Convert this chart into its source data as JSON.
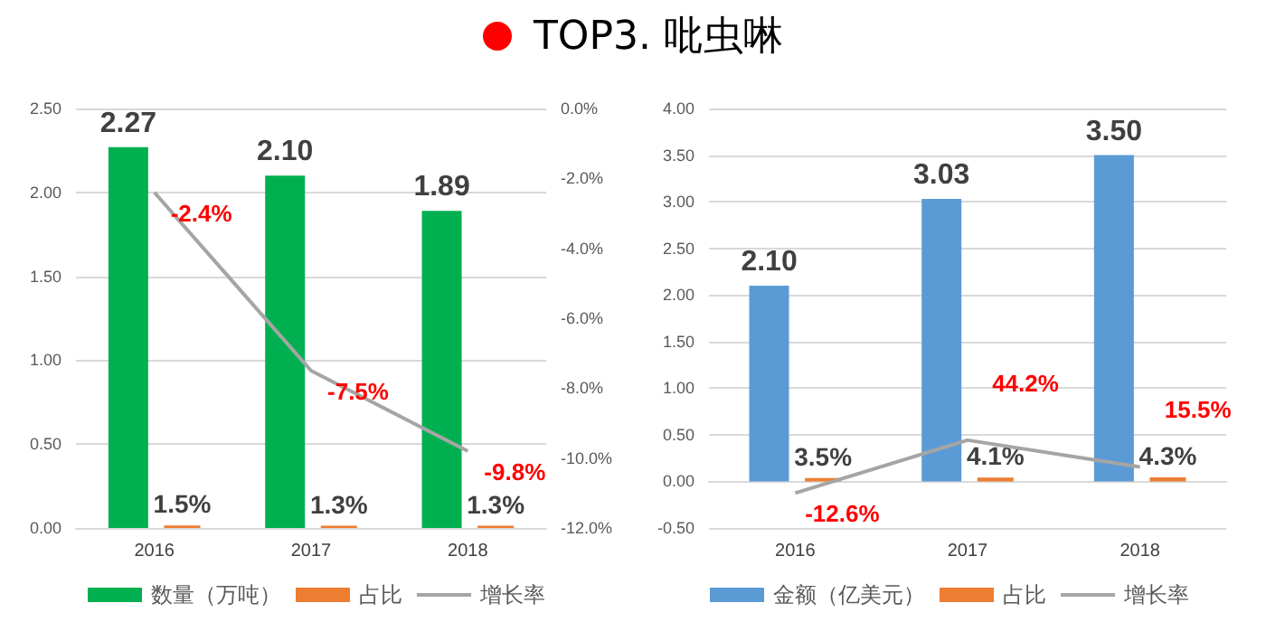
{
  "chart_data": [
    {
      "type": "bar",
      "title": "TOP3. 吡虫啉",
      "categories": [
        "2016",
        "2017",
        "2018"
      ],
      "legend": "bottom",
      "grid": "y",
      "marker": "none",
      "ylim": [
        0,
        2.5
      ],
      "yticks": [
        {
          "value": 0,
          "label": "0.00"
        },
        {
          "value": 0.5,
          "label": "0.50"
        },
        {
          "value": 1,
          "label": "1.00"
        },
        {
          "value": 1.5,
          "label": "1.50"
        },
        {
          "value": 2,
          "label": "2.00"
        },
        {
          "value": 2.5,
          "label": "2.50"
        }
      ],
      "y2lim": [
        -12,
        0
      ],
      "y2ticks": [
        {
          "value": -12,
          "label": "-12.0%"
        },
        {
          "value": -10,
          "label": "-10.0%"
        },
        {
          "value": -8,
          "label": "-8.0%"
        },
        {
          "value": -6,
          "label": "-6.0%"
        },
        {
          "value": -4,
          "label": "-4.0%"
        },
        {
          "value": -2,
          "label": "-2.0%"
        },
        {
          "value": 0,
          "label": "0.0%"
        }
      ],
      "series": [
        {
          "name": "数量（万吨）",
          "color": "#00b050",
          "values": [
            2.27,
            2.1,
            1.89
          ],
          "value_labels": [
            "2.27",
            "2.10",
            "1.89"
          ]
        },
        {
          "name": "占比",
          "color": "#ed7d31",
          "values": [
            0.015,
            0.013,
            0.013
          ],
          "value_labels": [
            "1.5%",
            "1.3%",
            "1.3%"
          ]
        },
        {
          "name": "增长率",
          "type": "line",
          "axis": "y2",
          "color": "#a5a5a5",
          "values": [
            -2.4,
            -7.5,
            -9.8
          ],
          "value_labels": [
            "-2.4%",
            "-7.5%",
            "-9.8%"
          ]
        }
      ]
    },
    {
      "type": "bar",
      "categories": [
        "2016",
        "2017",
        "2018"
      ],
      "legend": "bottom",
      "grid": "y",
      "marker": "none",
      "ylim": [
        -0.5,
        4
      ],
      "yticks": [
        {
          "value": -0.5,
          "label": "-0.50"
        },
        {
          "value": 0,
          "label": "0.00"
        },
        {
          "value": 0.5,
          "label": "0.50"
        },
        {
          "value": 1,
          "label": "1.00"
        },
        {
          "value": 1.5,
          "label": "1.50"
        },
        {
          "value": 2,
          "label": "2.00"
        },
        {
          "value": 2.5,
          "label": "2.50"
        },
        {
          "value": 3,
          "label": "3.00"
        },
        {
          "value": 3.5,
          "label": "3.50"
        },
        {
          "value": 4,
          "label": "4.00"
        }
      ],
      "series": [
        {
          "name": "金额（亿美元）",
          "color": "#5b9bd5",
          "values": [
            2.1,
            3.03,
            3.5
          ],
          "value_labels": [
            "2.10",
            "3.03",
            "3.50"
          ]
        },
        {
          "name": "占比",
          "color": "#ed7d31",
          "values": [
            0.035,
            0.041,
            0.043
          ],
          "value_labels": [
            "3.5%",
            "4.1%",
            "4.3%"
          ]
        },
        {
          "name": "增长率",
          "type": "line",
          "color": "#a5a5a5",
          "values": [
            -0.126,
            0.442,
            0.155
          ],
          "value_labels": [
            "-12.6%",
            "44.2%",
            "15.5%"
          ]
        }
      ]
    }
  ]
}
